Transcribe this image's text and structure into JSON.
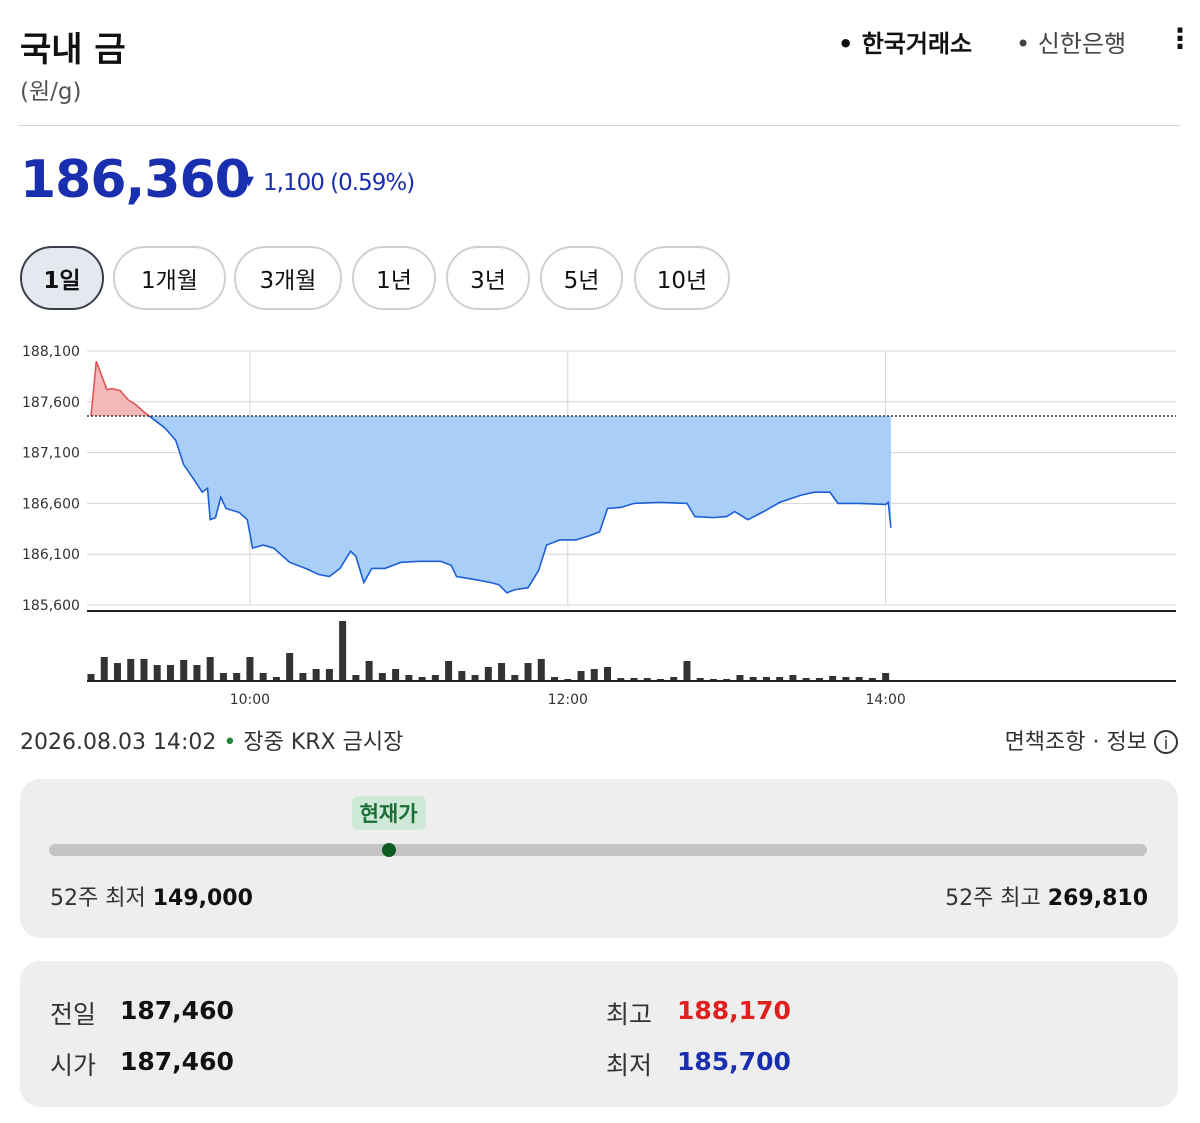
{
  "header": {
    "title": "국내 금",
    "unit": "(원/g)",
    "sources": [
      "한국거래소",
      "신한은행"
    ]
  },
  "price": {
    "current": {
      "value": 186360,
      "label": "186,360"
    },
    "change": "1,100",
    "change_pct": "(0.59%)"
  },
  "periods": [
    "1일",
    "1개월",
    "3개월",
    "1년",
    "3년",
    "5년",
    "10년"
  ],
  "chart_data": [
    {
      "type": "line",
      "color": "#1d5fd6",
      "fill": "#a9cff8",
      "up_color": "#e05555",
      "up_fill": "#f3b8b8",
      "x": [
        "09:00",
        "09:02",
        "09:04",
        "09:06",
        "09:08",
        "09:11",
        "09:14",
        "09:17",
        "09:20",
        "09:23",
        "09:28",
        "09:32",
        "09:35",
        "09:39",
        "09:42",
        "09:44",
        "09:45",
        "09:47",
        "09:49",
        "09:51",
        "09:56",
        "09:59",
        "10:01",
        "10:05",
        "10:09",
        "10:15",
        "10:21",
        "10:26",
        "10:30",
        "10:34",
        "10:38",
        "10:40",
        "10:43",
        "10:46",
        "10:51",
        "10:57",
        "11:04",
        "11:12",
        "11:16",
        "11:18",
        "11:25",
        "11:31",
        "11:34",
        "11:37",
        "11:40",
        "11:45",
        "11:49",
        "11:52",
        "11:57",
        "12:03",
        "12:08",
        "12:12",
        "12:15",
        "12:20",
        "12:25",
        "12:35",
        "12:45",
        "12:48",
        "12:55",
        "13:00",
        "13:03",
        "13:08",
        "13:14",
        "13:20",
        "13:28",
        "13:33",
        "13:39",
        "13:42",
        "13:50",
        "14:00",
        "14:01",
        "14:02"
      ],
      "values": [
        187460,
        188000,
        187860,
        187720,
        187730,
        187710,
        187620,
        187570,
        187500,
        187440,
        187340,
        187220,
        186980,
        186830,
        186710,
        186750,
        186440,
        186460,
        186660,
        186550,
        186510,
        186440,
        186160,
        186190,
        186160,
        186020,
        185960,
        185900,
        185880,
        185960,
        186130,
        186080,
        185820,
        185960,
        185960,
        186020,
        186030,
        186030,
        185990,
        185880,
        185850,
        185820,
        185800,
        185720,
        185750,
        185770,
        185940,
        186190,
        186240,
        186240,
        186280,
        186320,
        186550,
        186560,
        186600,
        186610,
        186600,
        186470,
        186460,
        186470,
        186520,
        186440,
        186520,
        186610,
        186680,
        186710,
        186710,
        186600,
        186600,
        186590,
        186610,
        186360
      ],
      "xlim": [
        "09:00",
        "15:50"
      ],
      "xticks": [
        "10:00",
        "12:00",
        "14:00"
      ],
      "ylim": [
        185600,
        188100
      ],
      "yticks": [
        {
          "value": 185600,
          "label": "185,600"
        },
        {
          "value": 186100,
          "label": "186,100"
        },
        {
          "value": 186600,
          "label": "186,600"
        },
        {
          "value": 187100,
          "label": "187,100"
        },
        {
          "value": 187600,
          "label": "187,600"
        },
        {
          "value": 188100,
          "label": "188,100"
        }
      ],
      "grid": true
    },
    {
      "type": "bar",
      "color": "#333333",
      "x": [
        "09:00",
        "09:05",
        "09:10",
        "09:15",
        "09:20",
        "09:25",
        "09:30",
        "09:35",
        "09:40",
        "09:45",
        "09:50",
        "09:55",
        "10:00",
        "10:05",
        "10:10",
        "10:15",
        "10:20",
        "10:25",
        "10:30",
        "10:35",
        "10:40",
        "10:45",
        "10:50",
        "10:55",
        "11:00",
        "11:05",
        "11:10",
        "11:15",
        "11:20",
        "11:25",
        "11:30",
        "11:35",
        "11:40",
        "11:45",
        "11:50",
        "11:55",
        "12:00",
        "12:05",
        "12:10",
        "12:15",
        "12:20",
        "12:25",
        "12:30",
        "12:35",
        "12:40",
        "12:45",
        "12:50",
        "12:55",
        "13:00",
        "13:05",
        "13:10",
        "13:15",
        "13:20",
        "13:25",
        "13:30",
        "13:35",
        "13:40",
        "13:45",
        "13:50",
        "13:55",
        "14:00"
      ],
      "values": [
        7,
        24,
        18,
        22,
        22,
        16,
        16,
        21,
        16,
        24,
        8,
        8,
        24,
        8,
        4,
        28,
        8,
        12,
        12,
        60,
        6,
        20,
        8,
        12,
        6,
        4,
        6,
        20,
        10,
        6,
        14,
        18,
        6,
        18,
        22,
        4,
        2,
        10,
        12,
        14,
        3,
        3,
        3,
        2,
        4,
        20,
        3,
        2,
        2,
        6,
        4,
        4,
        4,
        6,
        3,
        3,
        5,
        4,
        4,
        3,
        8
      ],
      "xlim": [
        "09:00",
        "15:50"
      ],
      "ylim": [
        0,
        60
      ]
    }
  ],
  "status": {
    "datetime": "2026.08.03 14:02",
    "session": "장중",
    "market": "KRX 금시장",
    "links": [
      "면책조항",
      "정보"
    ]
  },
  "range": {
    "marker": "현재가",
    "low": {
      "name": "52주 최저",
      "value": 149000,
      "label": "149,000"
    },
    "high": {
      "name": "52주 최고",
      "value": 269810,
      "label": "269,810"
    }
  },
  "stats": [
    {
      "name": "전일",
      "value": 187460,
      "label": "187,460"
    },
    {
      "name": "시가",
      "value": 187460,
      "label": "187,460"
    },
    {
      "name": "최고",
      "value": 188170,
      "label": "188,170"
    },
    {
      "name": "최저",
      "value": 185700,
      "label": "185,700"
    }
  ]
}
